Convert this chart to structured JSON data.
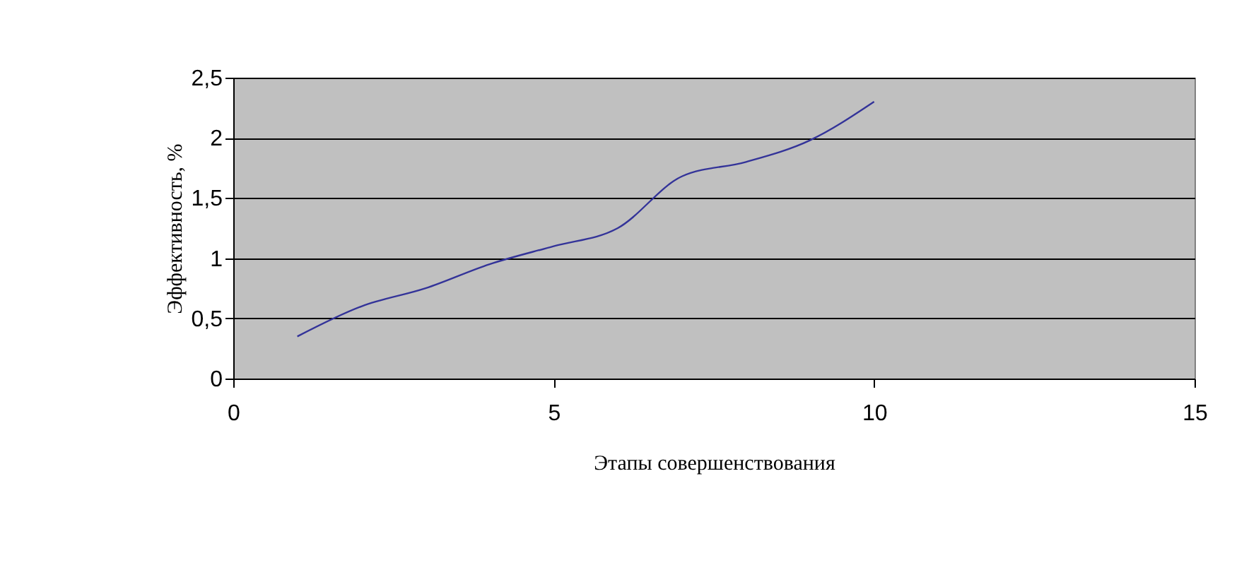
{
  "chart_data": {
    "type": "line",
    "xlabel": "Этапы совершенствования",
    "ylabel": "Эффективность, %",
    "x": [
      1,
      2,
      3,
      4,
      5,
      6,
      7,
      8,
      9,
      10
    ],
    "series": [
      {
        "color": "#333399",
        "values": [
          0.35,
          0.6,
          0.75,
          0.95,
          1.1,
          1.25,
          1.68,
          1.8,
          1.98,
          2.3
        ]
      }
    ],
    "xlim": [
      0,
      15
    ],
    "xticks": [
      0,
      5,
      10,
      15
    ],
    "ylim": [
      0,
      2.5
    ],
    "yticks": [
      0,
      {
        "value": 0.5,
        "label": "0,5"
      },
      1,
      {
        "value": 1.5,
        "label": "1,5"
      },
      2,
      {
        "value": 2.5,
        "label": "2,5"
      }
    ],
    "grid": "y",
    "marker": "none",
    "line_style": "solid"
  }
}
